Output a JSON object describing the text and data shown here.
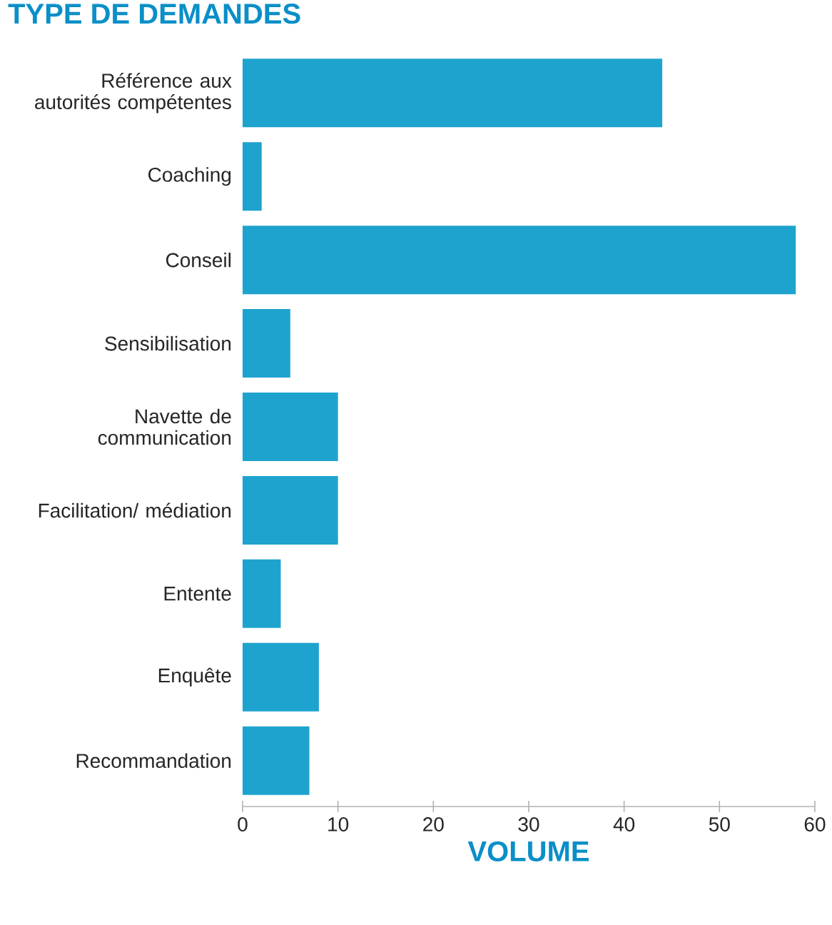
{
  "chart_data": {
    "type": "bar",
    "orientation": "horizontal",
    "title": "TYPE DE DEMANDES",
    "xlabel": "VOLUME",
    "categories": [
      "Référence aux autorités compétentes",
      "Coaching",
      "Conseil",
      "Sensibilisation",
      "Navette de communication",
      "Facilitation/ médiation",
      "Entente",
      "Enquête",
      "Recommandation"
    ],
    "values": [
      44,
      2,
      58,
      5,
      10,
      10,
      4,
      8,
      7
    ],
    "color": "#1ea3cf",
    "xlim": [
      0,
      60
    ],
    "xticks": [
      0,
      10,
      20,
      30,
      40,
      50,
      60
    ],
    "grid": false
  }
}
